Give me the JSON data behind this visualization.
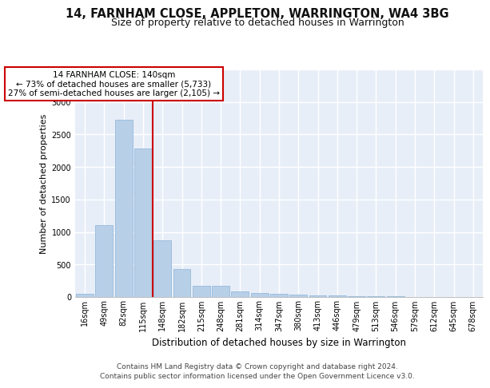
{
  "title1": "14, FARNHAM CLOSE, APPLETON, WARRINGTON, WA4 3BG",
  "title2": "Size of property relative to detached houses in Warrington",
  "xlabel": "Distribution of detached houses by size in Warrington",
  "ylabel": "Number of detached properties",
  "categories": [
    "16sqm",
    "49sqm",
    "82sqm",
    "115sqm",
    "148sqm",
    "182sqm",
    "215sqm",
    "248sqm",
    "281sqm",
    "314sqm",
    "347sqm",
    "380sqm",
    "413sqm",
    "446sqm",
    "479sqm",
    "513sqm",
    "546sqm",
    "579sqm",
    "612sqm",
    "645sqm",
    "678sqm"
  ],
  "values": [
    50,
    1100,
    2730,
    2280,
    870,
    430,
    175,
    170,
    90,
    65,
    55,
    40,
    30,
    20,
    15,
    10,
    8,
    5,
    3,
    2,
    1
  ],
  "bar_color": "#b8cfe8",
  "bar_edge_color": "#8ab4d8",
  "background_color": "#e8eef8",
  "grid_color": "#ffffff",
  "vline_index": 3.5,
  "vline_color": "#cc0000",
  "annotation_line1": "14 FARNHAM CLOSE: 140sqm",
  "annotation_line2": "← 73% of detached houses are smaller (5,733)",
  "annotation_line3": "27% of semi-detached houses are larger (2,105) →",
  "ann_box_edgecolor": "#cc0000",
  "ylim_max": 3500,
  "yticks": [
    0,
    500,
    1000,
    1500,
    2000,
    2500,
    3000,
    3500
  ],
  "footer_line1": "Contains HM Land Registry data © Crown copyright and database right 2024.",
  "footer_line2": "Contains public sector information licensed under the Open Government Licence v3.0.",
  "title1_fontsize": 10.5,
  "title2_fontsize": 9,
  "xlabel_fontsize": 8.5,
  "ylabel_fontsize": 8,
  "tick_fontsize": 7,
  "ann_fontsize": 7.5,
  "footer_fontsize": 6.5
}
